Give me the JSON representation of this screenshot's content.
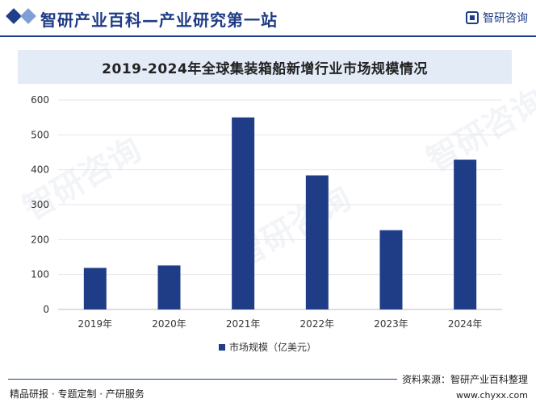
{
  "header": {
    "site_title": "智研产业百科—产业研究第一站",
    "brand": "智研咨询"
  },
  "chart_data": {
    "type": "bar",
    "title": "2019-2024年全球集装箱船新增行业市场规模情况",
    "categories": [
      "2019年",
      "2020年",
      "2021年",
      "2022年",
      "2023年",
      "2024年"
    ],
    "series": [
      {
        "name": "市场规模（亿美元）",
        "values": [
          119,
          126,
          550,
          384,
          227,
          429
        ]
      }
    ],
    "ylim": [
      0,
      600
    ],
    "yticks": [
      0,
      100,
      200,
      300,
      400,
      500,
      600
    ],
    "grid": true,
    "legend_position": "bottom",
    "colors": {
      "bar": "#1f3c87"
    }
  },
  "watermark": "智研咨询",
  "footer": {
    "left": "精品研报 · 专题定制 · 产研服务",
    "source": "资料来源：智研产业百科整理",
    "website": "www.chyxx.com"
  }
}
